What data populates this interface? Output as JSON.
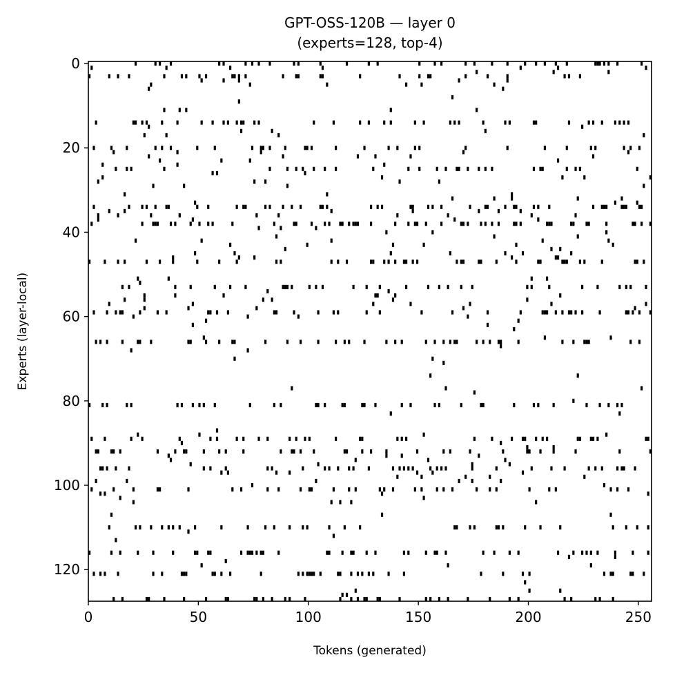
{
  "chart_data": {
    "type": "heatmap",
    "title": "GPT-OSS-120B — layer 0",
    "subtitle": "(experts=128, top-4)",
    "xlabel": "Tokens (generated)",
    "ylabel": "Experts (layer-local)",
    "xlim": [
      0,
      256
    ],
    "ylim": [
      128,
      0
    ],
    "x_ticks": [
      0,
      50,
      100,
      150,
      200,
      250
    ],
    "y_ticks": [
      0,
      20,
      40,
      60,
      80,
      100,
      120
    ],
    "n_tokens": 256,
    "n_experts": 128,
    "top_k": 4,
    "colors": {
      "active": "#000000",
      "inactive": "#ffffff"
    },
    "frequent_experts": [
      127,
      96,
      53,
      92,
      89,
      34,
      116,
      121,
      110,
      101,
      66,
      59,
      47,
      38,
      20,
      3,
      0,
      25,
      14,
      81
    ],
    "rare_experts": [
      77,
      76,
      75,
      79,
      78,
      74,
      73,
      72,
      71,
      80,
      82,
      83,
      84,
      85,
      86,
      87,
      48,
      49,
      50,
      51,
      52,
      7,
      8,
      9,
      10,
      12,
      13,
      15,
      16,
      17,
      18,
      19,
      122,
      123,
      124,
      125,
      126,
      113,
      114,
      115,
      117,
      118,
      119,
      120,
      105,
      106,
      107,
      108,
      109,
      111,
      112,
      62,
      63,
      64,
      65,
      67,
      68,
      69,
      70
    ]
  }
}
